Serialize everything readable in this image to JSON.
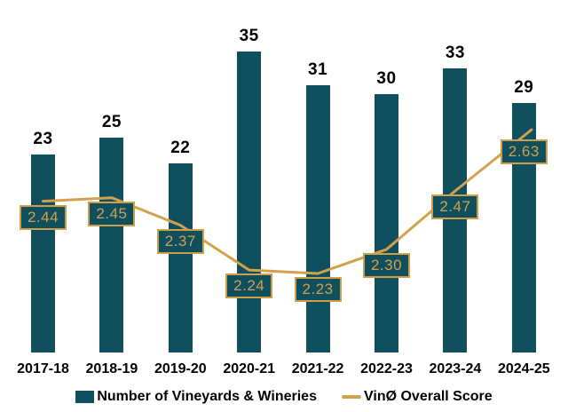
{
  "chart_data": {
    "type": "bar",
    "subtype": "bar-line-combo",
    "title": "",
    "xlabel": "",
    "ylabel": "",
    "grid": false,
    "legend_position": "bottom",
    "categories": [
      "2017-18",
      "2018-19",
      "2019-20",
      "2020-21",
      "2021-22",
      "2022-23",
      "2023-24",
      "2024-25"
    ],
    "series": [
      {
        "name": "Number of Vineyards & Wineries",
        "type": "bar",
        "values": [
          23,
          25,
          22,
          35,
          31,
          30,
          33,
          29
        ],
        "labels": [
          "23",
          "25",
          "22",
          "35",
          "31",
          "30",
          "33",
          "29"
        ],
        "axis_range": [
          0,
          40
        ]
      },
      {
        "name": "VinØ Overall Score",
        "type": "line",
        "values": [
          2.44,
          2.45,
          2.37,
          2.24,
          2.23,
          2.3,
          2.47,
          2.63
        ],
        "labels": [
          "2.44",
          "2.45",
          "2.37",
          "2.24",
          "2.23",
          "2.30",
          "2.47",
          "2.63"
        ],
        "axis_range": [
          2.0,
          2.8
        ]
      }
    ],
    "colors": {
      "bar": "#0f4f5e",
      "line": "#d2a14d",
      "score_label_bg": "#0f4f5e",
      "score_label_border": "#cf9e48",
      "score_label_text": "#d2a14d",
      "value_label_text": "#000000",
      "axis_label_text": "#000000",
      "background": "#ffffff"
    }
  }
}
